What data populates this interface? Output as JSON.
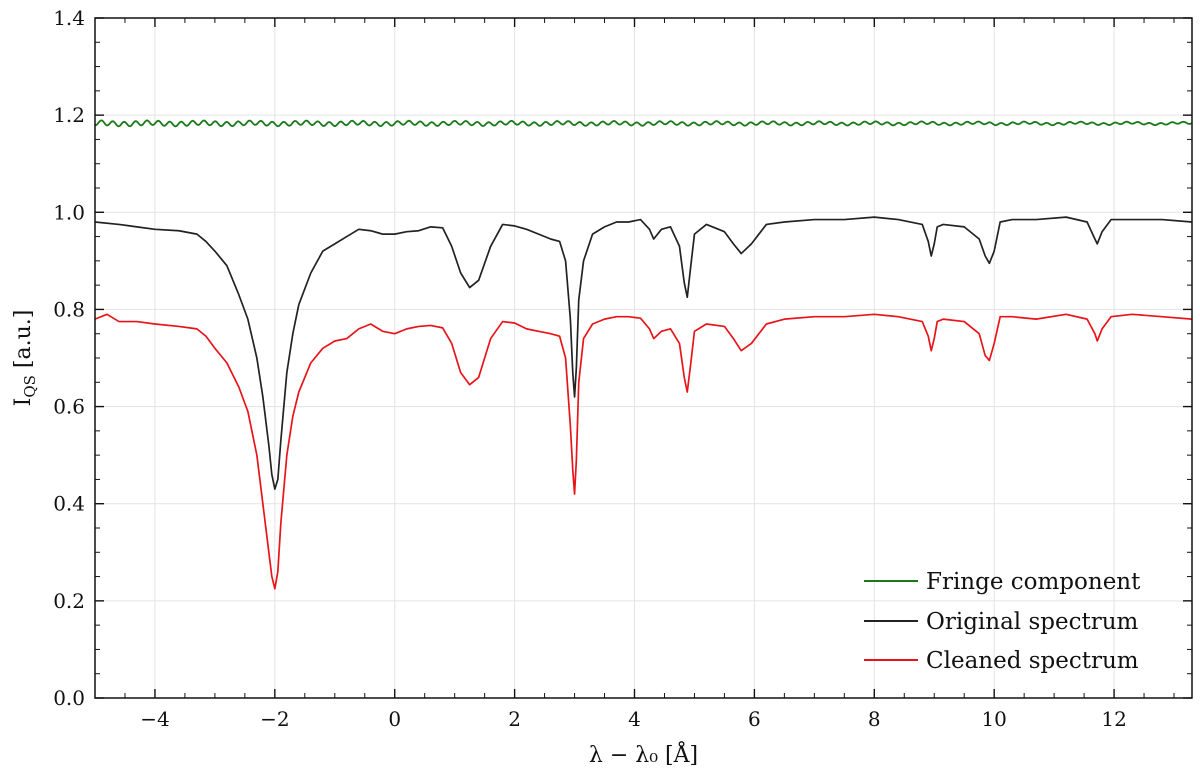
{
  "chart_data": {
    "type": "line",
    "xlabel": "λ − λ₀ [Å]",
    "ylabel": "I_QS [a.u.]",
    "ylabel_main": "I",
    "ylabel_sub": "QS",
    "ylabel_unit": " [a.u.]",
    "xlim": [
      -5.0,
      13.3
    ],
    "ylim": [
      0.0,
      1.4
    ],
    "xticks": [
      -4,
      -2,
      0,
      2,
      4,
      6,
      8,
      10,
      12
    ],
    "xtick_labels": [
      "−4",
      "−2",
      "0",
      "2",
      "4",
      "6",
      "8",
      "10",
      "12"
    ],
    "yticks": [
      0.0,
      0.2,
      0.4,
      0.6,
      0.8,
      1.0,
      1.2,
      1.4
    ],
    "ytick_labels": [
      "0.0",
      "0.2",
      "0.4",
      "0.6",
      "0.8",
      "1.0",
      "1.2",
      "1.4"
    ],
    "grid": true,
    "legend_position": "bottom-right",
    "series": [
      {
        "name": "Fringe component",
        "color": "#1a7a1a",
        "x": [
          -5.0,
          13.3
        ],
        "y": [
          1.183,
          1.183
        ]
      },
      {
        "name": "Original spectrum",
        "color": "#222222",
        "x": [
          -5.0,
          -4.6,
          -4.3,
          -4.0,
          -3.6,
          -3.3,
          -3.15,
          -3.0,
          -2.8,
          -2.6,
          -2.45,
          -2.3,
          -2.2,
          -2.1,
          -2.05,
          -2.0,
          -1.95,
          -1.9,
          -1.8,
          -1.7,
          -1.6,
          -1.4,
          -1.2,
          -1.0,
          -0.8,
          -0.6,
          -0.4,
          -0.2,
          0.0,
          0.2,
          0.4,
          0.6,
          0.8,
          0.95,
          1.1,
          1.25,
          1.4,
          1.6,
          1.8,
          2.0,
          2.2,
          2.4,
          2.6,
          2.75,
          2.85,
          2.93,
          2.97,
          3.0,
          3.03,
          3.07,
          3.15,
          3.3,
          3.5,
          3.7,
          3.9,
          4.1,
          4.25,
          4.32,
          4.45,
          4.6,
          4.75,
          4.83,
          4.88,
          4.93,
          5.0,
          5.2,
          5.5,
          5.65,
          5.78,
          5.95,
          6.2,
          6.5,
          7.0,
          7.5,
          8.0,
          8.4,
          8.8,
          8.9,
          8.95,
          9.0,
          9.05,
          9.15,
          9.5,
          9.75,
          9.85,
          9.92,
          10.0,
          10.1,
          10.3,
          10.7,
          11.2,
          11.55,
          11.68,
          11.72,
          11.8,
          11.95,
          12.3,
          12.8,
          13.3
        ],
        "y": [
          0.98,
          0.975,
          0.97,
          0.965,
          0.962,
          0.955,
          0.94,
          0.92,
          0.89,
          0.83,
          0.78,
          0.7,
          0.62,
          0.52,
          0.46,
          0.43,
          0.45,
          0.53,
          0.67,
          0.75,
          0.81,
          0.875,
          0.92,
          0.935,
          0.95,
          0.965,
          0.962,
          0.955,
          0.955,
          0.96,
          0.962,
          0.97,
          0.968,
          0.93,
          0.875,
          0.845,
          0.86,
          0.93,
          0.975,
          0.972,
          0.965,
          0.955,
          0.945,
          0.94,
          0.9,
          0.78,
          0.67,
          0.62,
          0.68,
          0.82,
          0.9,
          0.955,
          0.97,
          0.98,
          0.98,
          0.985,
          0.965,
          0.945,
          0.965,
          0.97,
          0.93,
          0.855,
          0.825,
          0.88,
          0.955,
          0.975,
          0.96,
          0.935,
          0.915,
          0.935,
          0.975,
          0.98,
          0.985,
          0.985,
          0.99,
          0.985,
          0.975,
          0.94,
          0.91,
          0.935,
          0.97,
          0.975,
          0.97,
          0.945,
          0.91,
          0.895,
          0.92,
          0.98,
          0.985,
          0.985,
          0.99,
          0.98,
          0.945,
          0.935,
          0.96,
          0.985,
          0.985,
          0.985,
          0.98
        ]
      },
      {
        "name": "Cleaned spectrum",
        "color": "#e8141a",
        "x": [
          -5.0,
          -4.8,
          -4.6,
          -4.3,
          -4.0,
          -3.6,
          -3.3,
          -3.15,
          -3.0,
          -2.8,
          -2.6,
          -2.45,
          -2.3,
          -2.2,
          -2.1,
          -2.05,
          -2.0,
          -1.95,
          -1.9,
          -1.8,
          -1.7,
          -1.6,
          -1.4,
          -1.2,
          -1.0,
          -0.8,
          -0.6,
          -0.4,
          -0.2,
          0.0,
          0.2,
          0.4,
          0.6,
          0.8,
          0.95,
          1.1,
          1.25,
          1.4,
          1.6,
          1.8,
          2.0,
          2.2,
          2.4,
          2.6,
          2.75,
          2.85,
          2.93,
          2.97,
          3.0,
          3.03,
          3.07,
          3.15,
          3.3,
          3.5,
          3.7,
          3.9,
          4.1,
          4.25,
          4.32,
          4.45,
          4.6,
          4.75,
          4.83,
          4.88,
          4.93,
          5.0,
          5.2,
          5.5,
          5.65,
          5.78,
          5.95,
          6.2,
          6.5,
          7.0,
          7.5,
          8.0,
          8.4,
          8.8,
          8.9,
          8.95,
          9.0,
          9.05,
          9.15,
          9.5,
          9.75,
          9.85,
          9.92,
          10.0,
          10.1,
          10.3,
          10.7,
          11.2,
          11.55,
          11.68,
          11.72,
          11.8,
          11.95,
          12.3,
          12.8,
          13.3
        ],
        "y": [
          0.78,
          0.79,
          0.775,
          0.775,
          0.77,
          0.765,
          0.76,
          0.745,
          0.72,
          0.69,
          0.64,
          0.59,
          0.5,
          0.4,
          0.3,
          0.25,
          0.225,
          0.26,
          0.36,
          0.5,
          0.58,
          0.63,
          0.69,
          0.72,
          0.735,
          0.74,
          0.76,
          0.77,
          0.755,
          0.75,
          0.76,
          0.765,
          0.767,
          0.762,
          0.73,
          0.67,
          0.645,
          0.66,
          0.74,
          0.775,
          0.772,
          0.76,
          0.755,
          0.75,
          0.745,
          0.7,
          0.56,
          0.47,
          0.42,
          0.49,
          0.65,
          0.74,
          0.77,
          0.78,
          0.785,
          0.785,
          0.782,
          0.76,
          0.74,
          0.755,
          0.76,
          0.73,
          0.66,
          0.63,
          0.68,
          0.755,
          0.77,
          0.765,
          0.74,
          0.715,
          0.73,
          0.77,
          0.78,
          0.785,
          0.785,
          0.79,
          0.785,
          0.775,
          0.745,
          0.715,
          0.74,
          0.775,
          0.78,
          0.775,
          0.75,
          0.705,
          0.695,
          0.73,
          0.785,
          0.785,
          0.78,
          0.79,
          0.78,
          0.75,
          0.735,
          0.76,
          0.785,
          0.79,
          0.785,
          0.78
        ]
      }
    ]
  }
}
